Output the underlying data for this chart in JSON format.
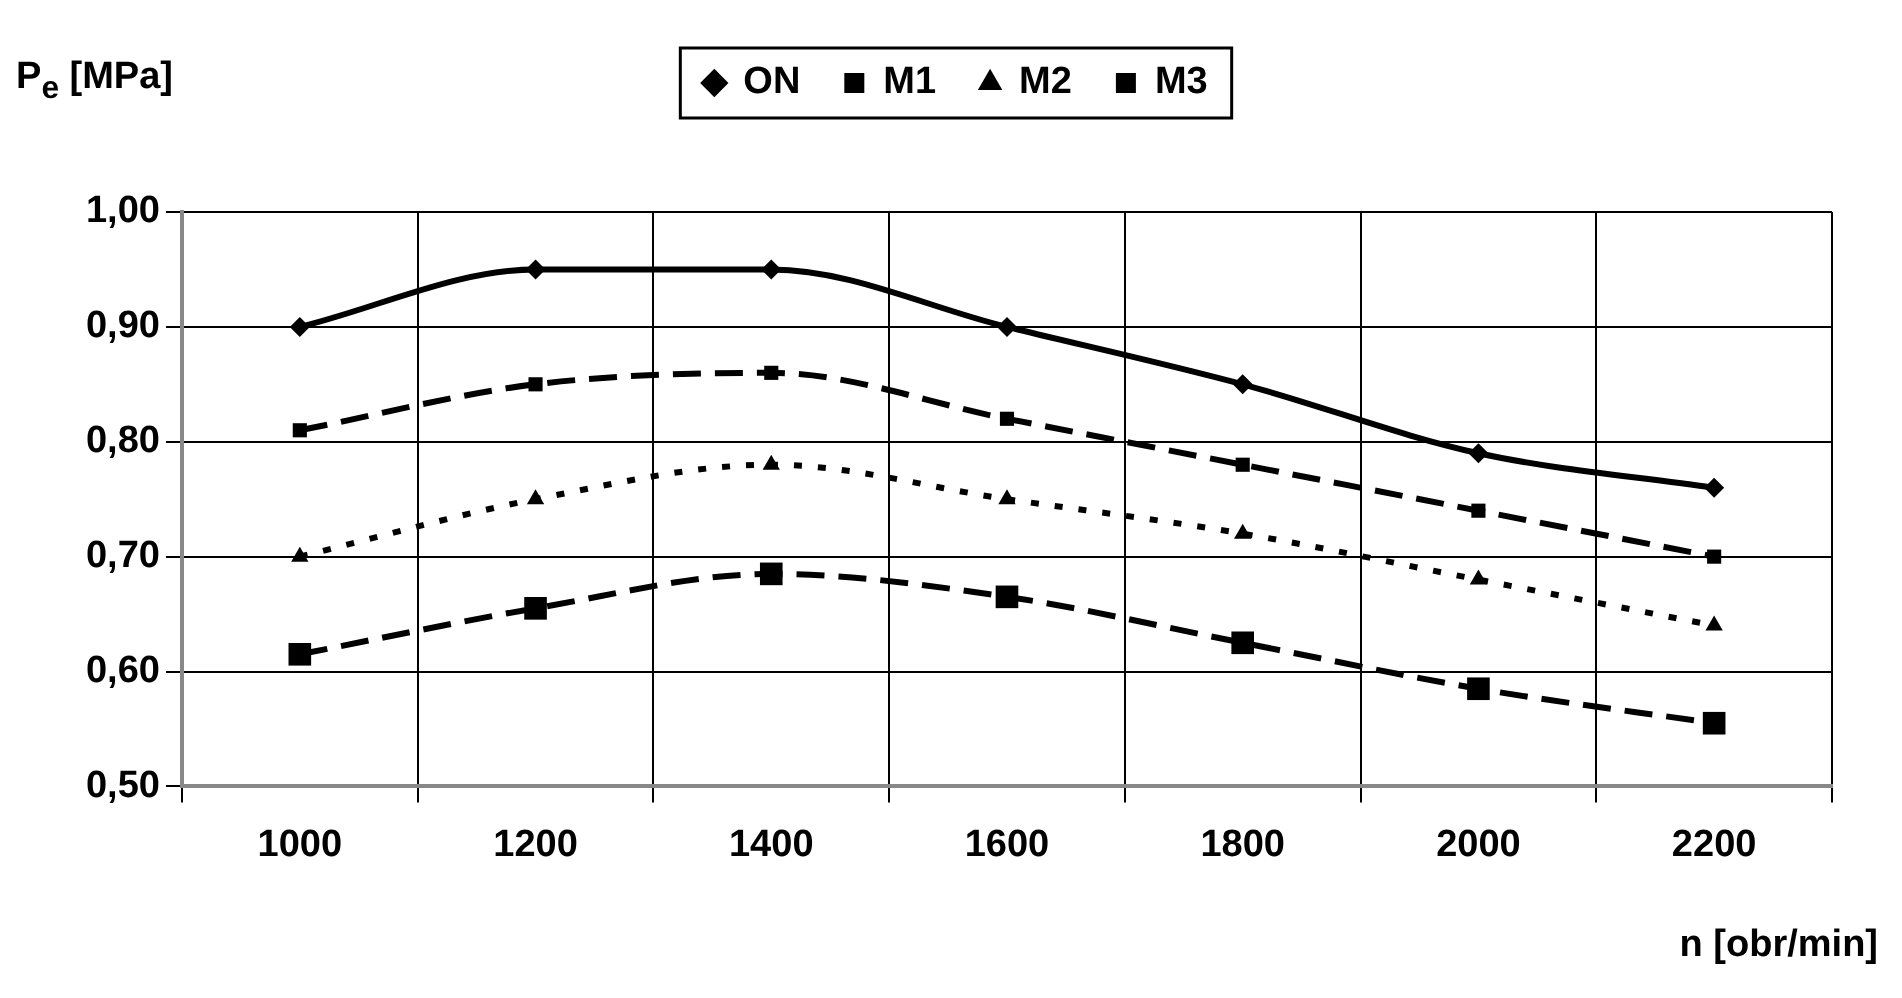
{
  "chart_data": {
    "type": "line",
    "xlabel": "n [obr/min]",
    "ylabel": "P$_{e}$ [MPa]",
    "categories": [
      "1000",
      "1200",
      "1400",
      "1600",
      "1800",
      "2000",
      "2200"
    ],
    "series": [
      {
        "name": "ON",
        "color": "#000000",
        "marker": "diamond",
        "line_style": "solid",
        "values": [
          0.9,
          0.95,
          0.95,
          0.9,
          0.85,
          0.79,
          0.76
        ]
      },
      {
        "name": "M1",
        "color": "#000000",
        "marker": "square",
        "line_style": "dashed",
        "values": [
          0.81,
          0.85,
          0.86,
          0.82,
          0.78,
          0.74,
          0.7
        ]
      },
      {
        "name": "M2",
        "color": "#000000",
        "marker": "triangle",
        "line_style": "dotted",
        "values": [
          0.7,
          0.75,
          0.78,
          0.75,
          0.72,
          0.68,
          0.64
        ]
      },
      {
        "name": "M3",
        "color": "#000000",
        "marker": "square",
        "line_style": "dashed",
        "values": [
          0.615,
          0.655,
          0.685,
          0.665,
          0.625,
          0.585,
          0.555
        ]
      }
    ],
    "ylim": [
      0.5,
      1.0
    ],
    "yticks": [
      {
        "value": 0.5,
        "label": "0,50"
      },
      {
        "value": 0.6,
        "label": "0,60"
      },
      {
        "value": 0.7,
        "label": "0,70"
      },
      {
        "value": 0.8,
        "label": "0,80"
      },
      {
        "value": 0.9,
        "label": "0,90"
      },
      {
        "value": 1.0,
        "label": "1,00"
      }
    ],
    "grid": true,
    "legend": "top"
  }
}
